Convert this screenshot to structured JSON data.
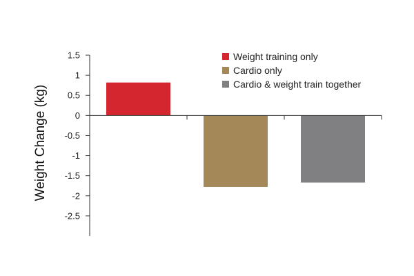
{
  "chart_data": {
    "type": "bar",
    "categories": [
      "Weight training only",
      "Cardio only",
      "Cardio & weight train together"
    ],
    "values": [
      0.82,
      -1.78,
      -1.67
    ],
    "colors": [
      "#d4262e",
      "#a48857",
      "#808083"
    ],
    "ylabel": "Weight Change (kg)",
    "yticks": [
      1.5,
      1,
      0.5,
      0,
      -0.5,
      -1,
      -1.5,
      -2,
      -2.5
    ],
    "ytick_labels": [
      "1.5",
      "1",
      "0.5",
      "0",
      "-0.5",
      "-1",
      "-1.5",
      "-2",
      "-2.5"
    ],
    "ylim": [
      -3,
      1.5
    ],
    "grid": false,
    "legend_position": "top-right"
  }
}
